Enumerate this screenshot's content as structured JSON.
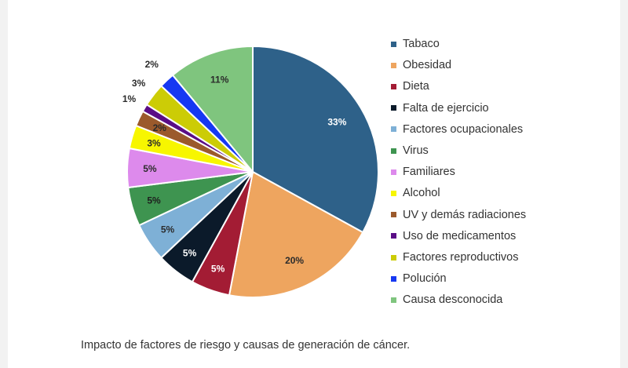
{
  "caption": "Impacto de factores de riesgo y causas de generación de cáncer.",
  "chart_data": {
    "type": "pie",
    "title": "",
    "start_angle_deg": 0,
    "direction": "clockwise",
    "legend_position": "right",
    "slices": [
      {
        "label": "Tabaco",
        "value": 33,
        "value_label": "33%",
        "color": "#2e6189",
        "label_color": "#ffffff"
      },
      {
        "label": "Obesidad",
        "value": 20,
        "value_label": "20%",
        "color": "#eea55f",
        "label_color": "#2b2b2b"
      },
      {
        "label": "Dieta",
        "value": 5,
        "value_label": "5%",
        "color": "#a31c34",
        "label_color": "#ffffff"
      },
      {
        "label": "Falta de ejercicio",
        "value": 5,
        "value_label": "5%",
        "color": "#0b1a2a",
        "label_color": "#ffffff"
      },
      {
        "label": "Factores ocupacionales",
        "value": 5,
        "value_label": "5%",
        "color": "#7eb0d6",
        "label_color": "#2b2b2b"
      },
      {
        "label": "Virus",
        "value": 5,
        "value_label": "5%",
        "color": "#3e9450",
        "label_color": "#1e1e1e"
      },
      {
        "label": "Familiares",
        "value": 5,
        "value_label": "5%",
        "color": "#dd8aec",
        "label_color": "#2b2b2b"
      },
      {
        "label": "Alcohol",
        "value": 3,
        "value_label": "3%",
        "color": "#f7f600",
        "label_color": "#2b2b2b"
      },
      {
        "label": "UV y demás radiaciones",
        "value": 2,
        "value_label": "2%",
        "color": "#9b5a2c",
        "label_color": "#2b2b2b"
      },
      {
        "label": "Uso de medicamentos",
        "value": 1,
        "value_label": "1%",
        "color": "#5a0d86",
        "label_color": "#2b2b2b"
      },
      {
        "label": "Factores reproductivos",
        "value": 3,
        "value_label": "3%",
        "color": "#cccc06",
        "label_color": "#2b2b2b"
      },
      {
        "label": "Polución",
        "value": 2,
        "value_label": "2%",
        "color": "#1638f2",
        "label_color": "#2b2b2b"
      },
      {
        "label": "Causa desconocida",
        "value": 11,
        "value_label": "11%",
        "color": "#7fc57e",
        "label_color": "#2b2b2b"
      }
    ]
  }
}
